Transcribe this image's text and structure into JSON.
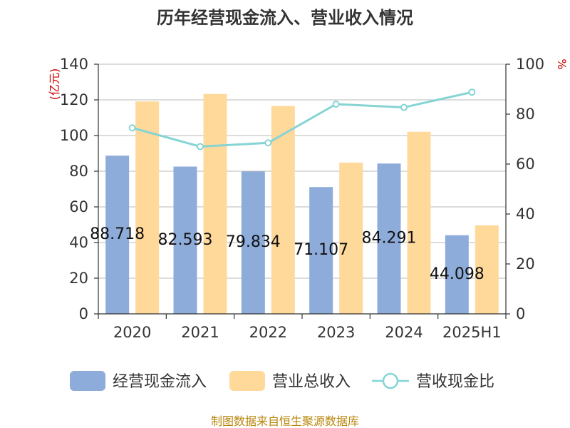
{
  "chart_data": {
    "type": "bar",
    "title": "历年经营现金流入、营业收入情况",
    "left_unit": "(亿元)",
    "right_unit": "%",
    "categories": [
      "2020",
      "2021",
      "2022",
      "2023",
      "2024",
      "2025H1"
    ],
    "series": [
      {
        "name": "经营现金流入",
        "kind": "bar",
        "axis": "left",
        "color": "#8eacda",
        "values": [
          88.718,
          82.593,
          79.834,
          71.107,
          84.291,
          44.098
        ],
        "labels": [
          "88.718",
          "82.593",
          "79.834",
          "71.107",
          "84.291",
          "44.098"
        ]
      },
      {
        "name": "营业总收入",
        "kind": "bar",
        "axis": "left",
        "color": "#ffd99a",
        "values": [
          119.1,
          123.3,
          116.6,
          84.8,
          102.1,
          49.6
        ]
      },
      {
        "name": "营收现金比",
        "kind": "line",
        "axis": "right",
        "color": "#86d4d4",
        "values": [
          74.5,
          67.0,
          68.5,
          84.0,
          82.7,
          88.8
        ]
      }
    ],
    "ylim_left": [
      0,
      140
    ],
    "yticks_left": [
      0,
      20,
      40,
      60,
      80,
      100,
      120,
      140
    ],
    "ylim_right": [
      0,
      100
    ],
    "yticks_right": [
      0,
      20,
      40,
      60,
      80,
      100
    ],
    "grid": true,
    "legend_position": "bottom"
  },
  "footer": {
    "source": "制图数据来自恒生聚源数据库"
  }
}
